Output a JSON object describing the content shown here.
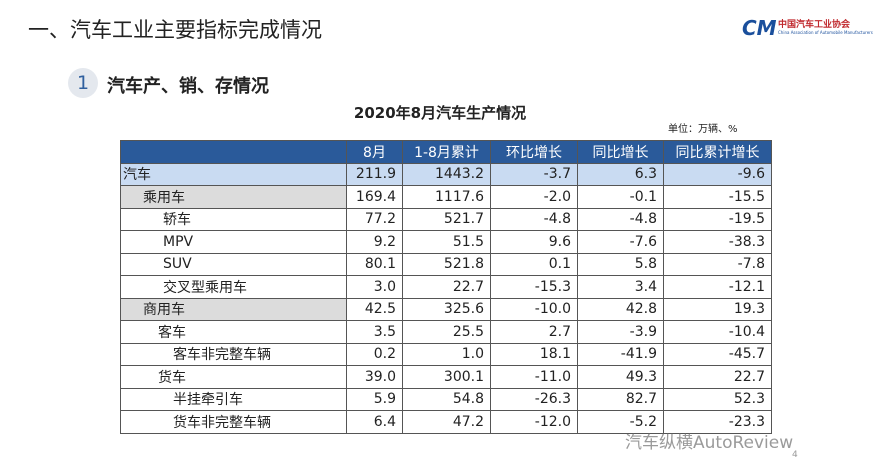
{
  "header": {
    "title": "一、汽车工业主要指标完成情况",
    "logo_name": "中国汽车工业协会",
    "logo_sub": "China Association of Automobile Manufacturers",
    "logo_mark": "CM"
  },
  "section": {
    "number": "1",
    "title": "汽车产、销、存情况"
  },
  "table": {
    "title": "2020年8月汽车生产情况",
    "unit": "单位：万辆、%",
    "columns": [
      "8月",
      "1-8月累计",
      "环比增长",
      "同比增长",
      "同比累计增长"
    ],
    "rows": [
      [
        "汽车",
        "211.9",
        "1443.2",
        "-3.7",
        "6.3",
        "-9.6"
      ],
      [
        "乘用车",
        "169.4",
        "1117.6",
        "-2.0",
        "-0.1",
        "-15.5"
      ],
      [
        "轿车",
        "77.2",
        "521.7",
        "-4.8",
        "-4.8",
        "-19.5"
      ],
      [
        "MPV",
        "9.2",
        "51.5",
        "9.6",
        "-7.6",
        "-38.3"
      ],
      [
        "SUV",
        "80.1",
        "521.8",
        "0.1",
        "5.8",
        "-7.8"
      ],
      [
        "交叉型乘用车",
        "3.0",
        "22.7",
        "-15.3",
        "3.4",
        "-12.1"
      ],
      [
        "商用车",
        "42.5",
        "325.6",
        "-10.0",
        "42.8",
        "19.3"
      ],
      [
        "客车",
        "3.5",
        "25.5",
        "2.7",
        "-3.9",
        "-10.4"
      ],
      [
        "客车非完整车辆",
        "0.2",
        "1.0",
        "18.1",
        "-41.9",
        "-45.7"
      ],
      [
        "货车",
        "39.0",
        "300.1",
        "-11.0",
        "49.3",
        "22.7"
      ],
      [
        "半挂牵引车",
        "5.9",
        "54.8",
        "-26.3",
        "82.7",
        "52.3"
      ],
      [
        "货车非完整车辆",
        "6.4",
        "47.2",
        "-12.0",
        "-5.2",
        "-23.3"
      ]
    ]
  },
  "watermark": "汽车纵横AutoReview",
  "page_number": "4"
}
